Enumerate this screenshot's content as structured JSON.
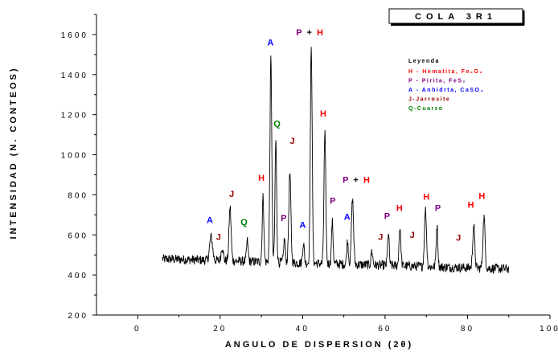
{
  "chart_data": {
    "type": "line",
    "title": "COLA 3R1",
    "xlabel": "ANGULO DE DISPERSION (2θ)",
    "ylabel": "INTENSIDAD (N. CONTEOS)",
    "xlim": [
      -10,
      100
    ],
    "ylim": [
      200,
      1700
    ],
    "xticks": [
      "0",
      "20",
      "40",
      "60",
      "80",
      "100"
    ],
    "yticks": [
      "200",
      "400",
      "600",
      "800",
      "1000",
      "1200",
      "1400",
      "1600"
    ],
    "grid": false,
    "legend_placement": "top-right",
    "colors": {
      "H": "#ff0000",
      "P": "#800080",
      "A": "#0000ff",
      "J": "#990000",
      "Q": "#008000",
      "trace": "#000000"
    },
    "legend": {
      "title": "Leyenda",
      "entries": [
        {
          "text": "H - Hematita, Fe₂O₃",
          "key": "H"
        },
        {
          "text": "P - Pirita, FeS₂",
          "key": "P"
        },
        {
          "text": "A - Anhidrta, CaSO₄",
          "key": "A"
        },
        {
          "text": "J-Jarrosite",
          "key": "J"
        },
        {
          "text": "Q-Cuarzo",
          "key": "Q"
        }
      ]
    },
    "baseline": {
      "x_start": 6,
      "x_end": 90,
      "y_start": 480,
      "y_end": 430,
      "noise": 30
    },
    "peaks": [
      {
        "x": 17.8,
        "y": 590,
        "w": 0.35
      },
      {
        "x": 20.5,
        "y": 540,
        "w": 0.25
      },
      {
        "x": 22.4,
        "y": 740,
        "w": 0.25
      },
      {
        "x": 26.6,
        "y": 570,
        "w": 0.2
      },
      {
        "x": 30.4,
        "y": 790,
        "w": 0.2
      },
      {
        "x": 32.3,
        "y": 1485,
        "w": 0.22
      },
      {
        "x": 33.5,
        "y": 1075,
        "w": 0.2
      },
      {
        "x": 35.6,
        "y": 580,
        "w": 0.2
      },
      {
        "x": 36.9,
        "y": 910,
        "w": 0.25
      },
      {
        "x": 40.2,
        "y": 560,
        "w": 0.2
      },
      {
        "x": 42.1,
        "y": 1555,
        "w": 0.22
      },
      {
        "x": 45.4,
        "y": 1105,
        "w": 0.22
      },
      {
        "x": 47.2,
        "y": 665,
        "w": 0.2
      },
      {
        "x": 50.9,
        "y": 570,
        "w": 0.2
      },
      {
        "x": 52.1,
        "y": 780,
        "w": 0.25
      },
      {
        "x": 56.8,
        "y": 520,
        "w": 0.2
      },
      {
        "x": 60.8,
        "y": 610,
        "w": 0.2
      },
      {
        "x": 63.6,
        "y": 640,
        "w": 0.22
      },
      {
        "x": 69.8,
        "y": 725,
        "w": 0.25
      },
      {
        "x": 72.6,
        "y": 650,
        "w": 0.2
      },
      {
        "x": 81.5,
        "y": 650,
        "w": 0.25
      },
      {
        "x": 84.0,
        "y": 690,
        "w": 0.25
      }
    ],
    "annotations": [
      {
        "x": 17.5,
        "y": 660,
        "parts": [
          {
            "t": "A",
            "k": "A"
          }
        ]
      },
      {
        "x": 19.6,
        "y": 575,
        "parts": [
          {
            "t": "J",
            "k": "J"
          }
        ]
      },
      {
        "x": 22.8,
        "y": 790,
        "parts": [
          {
            "t": "J",
            "k": "J"
          }
        ]
      },
      {
        "x": 25.8,
        "y": 650,
        "parts": [
          {
            "t": "Q",
            "k": "Q"
          }
        ]
      },
      {
        "x": 30.0,
        "y": 870,
        "parts": [
          {
            "t": "H",
            "k": "H"
          }
        ]
      },
      {
        "x": 32.2,
        "y": 1545,
        "parts": [
          {
            "t": "A",
            "k": "A"
          }
        ]
      },
      {
        "x": 33.8,
        "y": 1140,
        "parts": [
          {
            "t": "Q",
            "k": "Q"
          }
        ]
      },
      {
        "x": 35.4,
        "y": 670,
        "parts": [
          {
            "t": "P",
            "k": "P"
          }
        ]
      },
      {
        "x": 37.5,
        "y": 1055,
        "parts": [
          {
            "t": "J",
            "k": "J"
          }
        ]
      },
      {
        "x": 40.0,
        "y": 635,
        "parts": [
          {
            "t": "A",
            "k": "A"
          }
        ]
      },
      {
        "x": 41.7,
        "y": 1595,
        "parts": [
          {
            "t": "P",
            "k": "P"
          },
          {
            "t": "  +  ",
            "k": "trace"
          },
          {
            "t": "H",
            "k": "H"
          }
        ]
      },
      {
        "x": 45.0,
        "y": 1190,
        "parts": [
          {
            "t": "H",
            "k": "H"
          }
        ]
      },
      {
        "x": 47.3,
        "y": 755,
        "parts": [
          {
            "t": "P",
            "k": "P"
          }
        ]
      },
      {
        "x": 50.8,
        "y": 675,
        "parts": [
          {
            "t": "A",
            "k": "A"
          }
        ]
      },
      {
        "x": 53.0,
        "y": 860,
        "parts": [
          {
            "t": "P",
            "k": "P"
          },
          {
            "t": "  +  ",
            "k": "trace"
          },
          {
            "t": "H",
            "k": "H"
          }
        ]
      },
      {
        "x": 58.9,
        "y": 575,
        "parts": [
          {
            "t": "J",
            "k": "J"
          }
        ]
      },
      {
        "x": 60.5,
        "y": 680,
        "parts": [
          {
            "t": "P",
            "k": "P"
          }
        ]
      },
      {
        "x": 63.5,
        "y": 720,
        "parts": [
          {
            "t": "H",
            "k": "H"
          }
        ]
      },
      {
        "x": 66.6,
        "y": 585,
        "parts": [
          {
            "t": "J",
            "k": "J"
          }
        ]
      },
      {
        "x": 70.0,
        "y": 775,
        "parts": [
          {
            "t": "H",
            "k": "H"
          }
        ]
      },
      {
        "x": 72.8,
        "y": 720,
        "parts": [
          {
            "t": "P",
            "k": "P"
          }
        ]
      },
      {
        "x": 77.8,
        "y": 570,
        "parts": [
          {
            "t": "J",
            "k": "J"
          }
        ]
      },
      {
        "x": 80.8,
        "y": 735,
        "parts": [
          {
            "t": "H",
            "k": "H"
          }
        ]
      },
      {
        "x": 83.5,
        "y": 780,
        "parts": [
          {
            "t": "H",
            "k": "H"
          }
        ]
      }
    ]
  }
}
